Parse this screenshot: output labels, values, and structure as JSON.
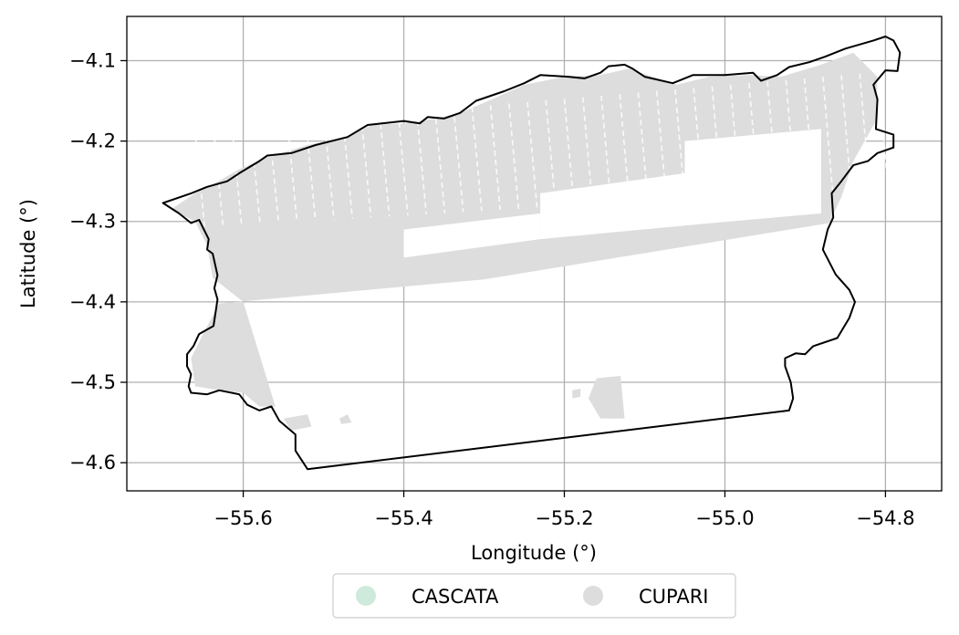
{
  "chart_data": {
    "type": "map",
    "xlabel": "Longitude (°)",
    "ylabel": "Latitude (°)",
    "xlim": [
      -55.745,
      -54.73
    ],
    "ylim": [
      -4.635,
      -4.045
    ],
    "x_ticks": [
      -55.6,
      -55.4,
      -55.2,
      -55.0,
      -54.8
    ],
    "x_tick_labels": [
      "−55.6",
      "−55.4",
      "−55.2",
      "−55.0",
      "−54.8"
    ],
    "y_ticks": [
      -4.1,
      -4.2,
      -4.3,
      -4.4,
      -4.5,
      -4.6
    ],
    "y_tick_labels": [
      "−4.1",
      "−4.2",
      "−4.3",
      "−4.4",
      "−4.5",
      "−4.6"
    ],
    "grid": true,
    "legend": {
      "placement": "bottom-center",
      "entries": [
        {
          "name": "CASCATA",
          "color": "#cdeadc"
        },
        {
          "name": "CUPARI",
          "color": "#dddddd"
        }
      ]
    },
    "boundary": [
      [
        -55.7,
        -4.277
      ],
      [
        -55.68,
        -4.29
      ],
      [
        -55.665,
        -4.302
      ],
      [
        -55.655,
        -4.298
      ],
      [
        -55.643,
        -4.322
      ],
      [
        -55.645,
        -4.335
      ],
      [
        -55.638,
        -4.34
      ],
      [
        -55.632,
        -4.367
      ],
      [
        -55.636,
        -4.383
      ],
      [
        -55.632,
        -4.397
      ],
      [
        -55.637,
        -4.43
      ],
      [
        -55.655,
        -4.44
      ],
      [
        -55.662,
        -4.455
      ],
      [
        -55.67,
        -4.465
      ],
      [
        -55.67,
        -4.48
      ],
      [
        -55.665,
        -4.49
      ],
      [
        -55.668,
        -4.505
      ],
      [
        -55.665,
        -4.513
      ],
      [
        -55.645,
        -4.515
      ],
      [
        -55.63,
        -4.51
      ],
      [
        -55.605,
        -4.515
      ],
      [
        -55.595,
        -4.528
      ],
      [
        -55.58,
        -4.535
      ],
      [
        -55.565,
        -4.53
      ],
      [
        -55.555,
        -4.548
      ],
      [
        -55.535,
        -4.565
      ],
      [
        -55.535,
        -4.585
      ],
      [
        -55.52,
        -4.608
      ],
      [
        -54.92,
        -4.535
      ],
      [
        -54.915,
        -4.52
      ],
      [
        -54.918,
        -4.5
      ],
      [
        -54.925,
        -4.48
      ],
      [
        -54.925,
        -4.47
      ],
      [
        -54.912,
        -4.464
      ],
      [
        -54.9,
        -4.465
      ],
      [
        -54.89,
        -4.455
      ],
      [
        -54.86,
        -4.445
      ],
      [
        -54.845,
        -4.42
      ],
      [
        -54.838,
        -4.4
      ],
      [
        -54.845,
        -4.385
      ],
      [
        -54.862,
        -4.366
      ],
      [
        -54.878,
        -4.335
      ],
      [
        -54.872,
        -4.31
      ],
      [
        -54.865,
        -4.295
      ],
      [
        -54.867,
        -4.265
      ],
      [
        -54.855,
        -4.25
      ],
      [
        -54.84,
        -4.23
      ],
      [
        -54.822,
        -4.225
      ],
      [
        -54.81,
        -4.215
      ],
      [
        -54.79,
        -4.208
      ],
      [
        -54.79,
        -4.192
      ],
      [
        -54.812,
        -4.185
      ],
      [
        -54.81,
        -4.148
      ],
      [
        -54.815,
        -4.13
      ],
      [
        -54.8,
        -4.112
      ],
      [
        -54.785,
        -4.113
      ],
      [
        -54.782,
        -4.09
      ],
      [
        -54.79,
        -4.075
      ],
      [
        -54.8,
        -4.07
      ],
      [
        -54.815,
        -4.075
      ],
      [
        -54.85,
        -4.085
      ],
      [
        -54.875,
        -4.095
      ],
      [
        -54.895,
        -4.102
      ],
      [
        -54.92,
        -4.108
      ],
      [
        -54.935,
        -4.118
      ],
      [
        -54.955,
        -4.125
      ],
      [
        -54.965,
        -4.115
      ],
      [
        -55.0,
        -4.118
      ],
      [
        -55.04,
        -4.118
      ],
      [
        -55.065,
        -4.128
      ],
      [
        -55.1,
        -4.12
      ],
      [
        -55.115,
        -4.11
      ],
      [
        -55.125,
        -4.105
      ],
      [
        -55.145,
        -4.107
      ],
      [
        -55.155,
        -4.115
      ],
      [
        -55.175,
        -4.122
      ],
      [
        -55.195,
        -4.12
      ],
      [
        -55.23,
        -4.118
      ],
      [
        -55.25,
        -4.128
      ],
      [
        -55.275,
        -4.138
      ],
      [
        -55.31,
        -4.15
      ],
      [
        -55.33,
        -4.165
      ],
      [
        -55.35,
        -4.172
      ],
      [
        -55.37,
        -4.17
      ],
      [
        -55.38,
        -4.178
      ],
      [
        -55.4,
        -4.175
      ],
      [
        -55.445,
        -4.18
      ],
      [
        -55.47,
        -4.195
      ],
      [
        -55.51,
        -4.205
      ],
      [
        -55.54,
        -4.215
      ],
      [
        -55.57,
        -4.218
      ],
      [
        -55.58,
        -4.225
      ],
      [
        -55.605,
        -4.24
      ],
      [
        -55.62,
        -4.25
      ],
      [
        -55.645,
        -4.257
      ],
      [
        -55.665,
        -4.265
      ],
      [
        -55.7,
        -4.277
      ]
    ],
    "cupari_area": [
      [
        -55.69,
        -4.285
      ],
      [
        -55.66,
        -4.265
      ],
      [
        -55.64,
        -4.255
      ],
      [
        -55.605,
        -4.235
      ],
      [
        -55.57,
        -4.22
      ],
      [
        -55.52,
        -4.205
      ],
      [
        -55.47,
        -4.195
      ],
      [
        -55.44,
        -4.18
      ],
      [
        -55.4,
        -4.178
      ],
      [
        -55.36,
        -4.172
      ],
      [
        -55.33,
        -4.165
      ],
      [
        -55.29,
        -4.148
      ],
      [
        -55.25,
        -4.13
      ],
      [
        -55.2,
        -4.12
      ],
      [
        -55.155,
        -4.118
      ],
      [
        -55.12,
        -4.11
      ],
      [
        -55.09,
        -4.12
      ],
      [
        -55.06,
        -4.13
      ],
      [
        -55.02,
        -4.12
      ],
      [
        -54.97,
        -4.118
      ],
      [
        -54.93,
        -4.12
      ],
      [
        -54.88,
        -4.105
      ],
      [
        -54.84,
        -4.09
      ],
      [
        -54.81,
        -4.12
      ],
      [
        -54.812,
        -4.175
      ],
      [
        -54.84,
        -4.225
      ],
      [
        -54.855,
        -4.27
      ],
      [
        -54.87,
        -4.302
      ],
      [
        -55.3,
        -4.372
      ],
      [
        -55.63,
        -4.402
      ],
      [
        -55.65,
        -4.44
      ],
      [
        -55.665,
        -4.47
      ],
      [
        -55.66,
        -4.505
      ],
      [
        -55.63,
        -4.51
      ],
      [
        -55.6,
        -4.513
      ],
      [
        -55.58,
        -4.53
      ],
      [
        -55.56,
        -4.53
      ],
      [
        -55.6,
        -4.4
      ],
      [
        -55.638,
        -4.37
      ],
      [
        -55.645,
        -4.33
      ],
      [
        -55.66,
        -4.3
      ],
      [
        -55.69,
        -4.285
      ]
    ],
    "cupari_south_patches": [
      [
        [
          -55.16,
          -4.495
        ],
        [
          -55.13,
          -4.492
        ],
        [
          -55.125,
          -4.545
        ],
        [
          -55.155,
          -4.545
        ],
        [
          -55.17,
          -4.52
        ]
      ],
      [
        [
          -55.55,
          -4.545
        ],
        [
          -55.52,
          -4.54
        ],
        [
          -55.515,
          -4.555
        ],
        [
          -55.54,
          -4.56
        ]
      ],
      [
        [
          -55.48,
          -4.545
        ],
        [
          -55.47,
          -4.54
        ],
        [
          -55.465,
          -4.55
        ],
        [
          -55.478,
          -4.552
        ]
      ],
      [
        [
          -55.19,
          -4.51
        ],
        [
          -55.18,
          -4.508
        ],
        [
          -55.18,
          -4.518
        ],
        [
          -55.19,
          -4.52
        ]
      ]
    ],
    "cupari_gaps": [
      [
        [
          -55.05,
          -4.2
        ],
        [
          -54.88,
          -4.185
        ],
        [
          -54.88,
          -4.29
        ],
        [
          -55.05,
          -4.305
        ]
      ],
      [
        [
          -55.23,
          -4.265
        ],
        [
          -55.05,
          -4.24
        ],
        [
          -55.05,
          -4.305
        ],
        [
          -55.23,
          -4.322
        ]
      ],
      [
        [
          -55.4,
          -4.31
        ],
        [
          -55.23,
          -4.29
        ],
        [
          -55.23,
          -4.322
        ],
        [
          -55.4,
          -4.345
        ]
      ]
    ]
  }
}
